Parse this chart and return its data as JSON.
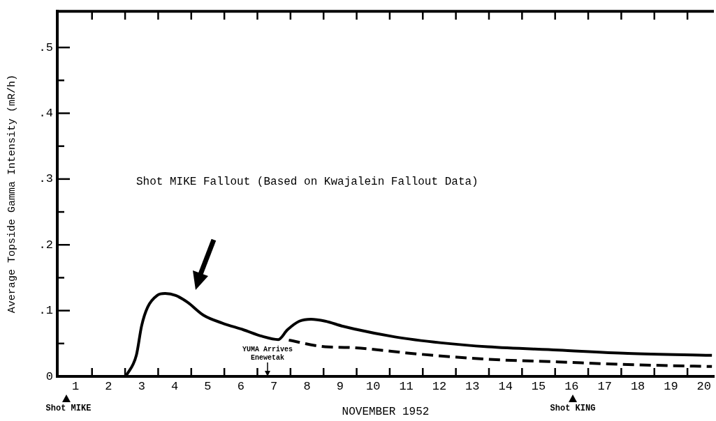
{
  "chart_data": {
    "type": "line",
    "xlabel": "NOVEMBER 1952",
    "ylabel": "Average Topside Gamma Intensity (mR/h)",
    "xlim": [
      0.45,
      20.3
    ],
    "ylim": [
      0,
      0.555
    ],
    "xticks": [
      1,
      {
        "value": 1.5,
        "label": null
      },
      2,
      {
        "value": 2.5,
        "label": null
      },
      3,
      {
        "value": 3.5,
        "label": null
      },
      4,
      {
        "value": 4.5,
        "label": null
      },
      5,
      {
        "value": 5.5,
        "label": null
      },
      6,
      {
        "value": 6.5,
        "label": null
      },
      7,
      {
        "value": 7.5,
        "label": null
      },
      8,
      {
        "value": 8.5,
        "label": null
      },
      9,
      {
        "value": 9.5,
        "label": null
      },
      10,
      {
        "value": 10.5,
        "label": null
      },
      11,
      {
        "value": 11.5,
        "label": null
      },
      12,
      {
        "value": 12.5,
        "label": null
      },
      13,
      {
        "value": 13.5,
        "label": null
      },
      14,
      {
        "value": 14.5,
        "label": null
      },
      15,
      {
        "value": 15.5,
        "label": null
      },
      16,
      {
        "value": 16.5,
        "label": null
      },
      17,
      {
        "value": 17.5,
        "label": null
      },
      18,
      {
        "value": 18.5,
        "label": null
      },
      19,
      {
        "value": 19.5,
        "label": null
      },
      20
    ],
    "yticks": [
      0,
      {
        "value": 0.05,
        "label": null
      },
      {
        "value": 0.1,
        "label": ".1"
      },
      {
        "value": 0.15,
        "label": null
      },
      {
        "value": 0.2,
        "label": ".2"
      },
      {
        "value": 0.25,
        "label": null
      },
      {
        "value": 0.3,
        "label": ".3"
      },
      {
        "value": 0.35,
        "label": null
      },
      {
        "value": 0.4,
        "label": ".4"
      },
      {
        "value": 0.45,
        "label": null
      },
      {
        "value": 0.5,
        "label": ".5"
      }
    ],
    "marker": "none",
    "legend": false,
    "series": [
      {
        "color": "#000000",
        "line_style": "solid",
        "x": [
          2.52,
          2.84,
          3.0,
          3.18,
          3.47,
          3.71,
          4.03,
          4.38,
          4.87,
          5.44,
          6.07,
          6.64,
          7.13,
          7.41,
          7.77,
          8.12,
          8.55,
          9.1,
          10.66,
          12.06,
          13.47,
          15.59,
          17.7,
          20.24
        ],
        "values": [
          0,
          0.032,
          0.077,
          0.105,
          0.123,
          0.126,
          0.123,
          0.113,
          0.093,
          0.081,
          0.071,
          0.061,
          0.056,
          0.071,
          0.084,
          0.087,
          0.084,
          0.076,
          0.06,
          0.051,
          0.045,
          0.04,
          0.035,
          0.032
        ]
      },
      {
        "color": "#000000",
        "line_style": "dashed",
        "x": [
          7.45,
          8.55,
          9.25,
          11.36,
          13.47,
          15.59,
          17.7,
          20.24
        ],
        "values": [
          0.055,
          0.045,
          0.044,
          0.034,
          0.026,
          0.022,
          0.018,
          0.015
        ]
      }
    ],
    "annotations": [
      "Shot MIKE Fallout (Based on Kwajalein Fallout Data)",
      "YUMA Arrives Enewetak",
      "Shot MIKE",
      "Shot KING"
    ]
  }
}
